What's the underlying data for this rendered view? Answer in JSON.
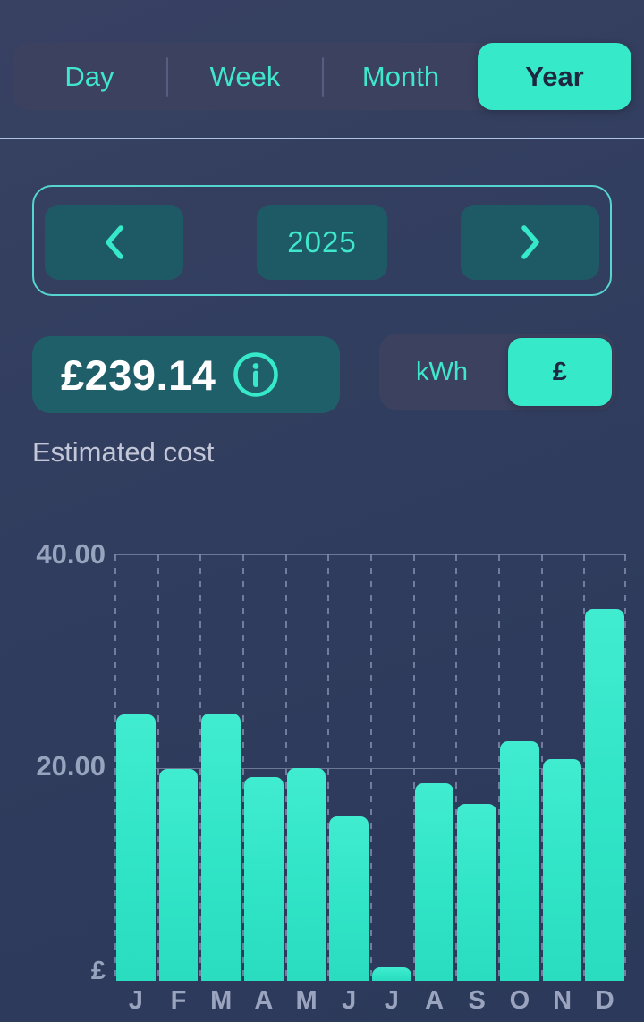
{
  "tabs": {
    "items": [
      {
        "label": "Day",
        "selected": false
      },
      {
        "label": "Week",
        "selected": false
      },
      {
        "label": "Month",
        "selected": false
      },
      {
        "label": "Year",
        "selected": true
      }
    ]
  },
  "year_nav": {
    "year": "2025",
    "prev_icon": "chevron-left",
    "next_icon": "chevron-right"
  },
  "cost": {
    "amount": "£239.14",
    "caption": "Estimated cost",
    "info_icon": "info-circle"
  },
  "unit_toggle": {
    "kwh_label": "kWh",
    "currency_label": "£",
    "selected": "£"
  },
  "colors": {
    "background": "#2f3c5c",
    "accent_mint": "#36eac9",
    "teal_text": "#3fe8cb",
    "button_teal_bg": "#1e5a66",
    "cost_pill_bg": "#1e5f6a",
    "bar_mint": "#30e4c6",
    "axis_text": "#98a3bd",
    "selected_text_dark": "#1f273e"
  },
  "chart_data": {
    "type": "bar",
    "categories": [
      "J",
      "F",
      "M",
      "A",
      "M",
      "J",
      "J",
      "A",
      "S",
      "O",
      "N",
      "D"
    ],
    "values": [
      25.0,
      19.9,
      25.1,
      19.1,
      20.0,
      15.4,
      1.3,
      18.5,
      16.6,
      22.5,
      20.8,
      34.9
    ],
    "title": "",
    "xlabel": "",
    "ylabel": "£",
    "ylim": [
      0,
      40
    ],
    "yticks": [
      {
        "value": 40,
        "label": "40.00"
      },
      {
        "value": 20,
        "label": "20.00"
      },
      {
        "value": 0,
        "label": "£"
      }
    ],
    "grid": "dashed vertical lines between bars; solid horizontal lines at 20 and 40",
    "legend": "none",
    "bar_color": "#30e4c6"
  }
}
